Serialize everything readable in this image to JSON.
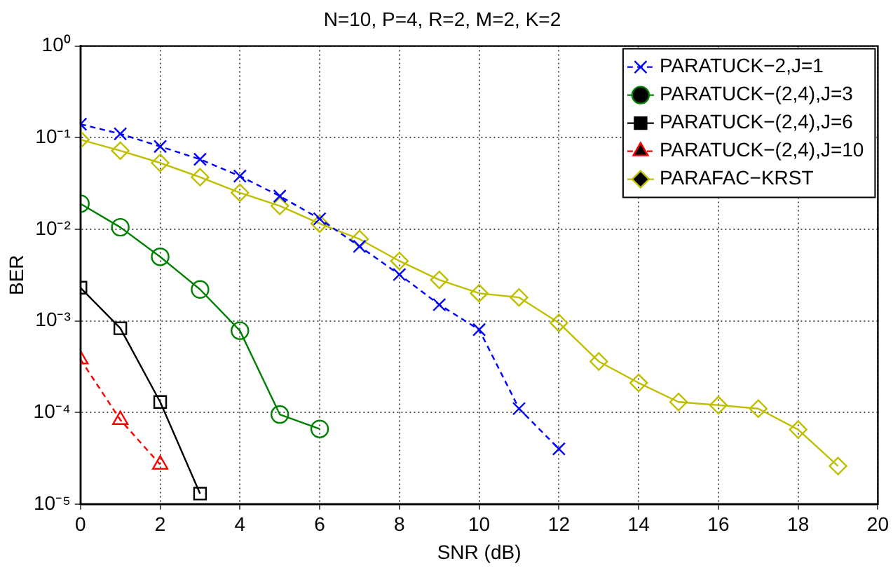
{
  "chart_data": {
    "type": "line",
    "title": "N=10, P=4, R=2, M=2, K=2",
    "xlabel": "SNR (dB)",
    "ylabel": "BER",
    "log": "y",
    "grid": true,
    "legend": "top right",
    "xlim": [
      0,
      20
    ],
    "xticks": [
      0,
      2,
      4,
      6,
      8,
      10,
      12,
      14,
      16,
      18,
      20
    ],
    "ylim": [
      1e-05,
      1
    ],
    "yticks": [
      {
        "value": 1e-05,
        "label": "10⁻⁵"
      },
      {
        "value": 0.0001,
        "label": "10⁻⁴"
      },
      {
        "value": 0.001,
        "label": "10⁻³"
      },
      {
        "value": 0.01,
        "label": "10⁻²"
      },
      {
        "value": 0.1,
        "label": "10⁻¹"
      },
      {
        "value": 1,
        "label": "10⁰"
      }
    ],
    "series": [
      {
        "name": "PARATUCK−2,J=1",
        "color": "#0000ff",
        "marker": "cross",
        "line_style": "dashed",
        "x": [
          0,
          1,
          2,
          3,
          4,
          5,
          6,
          7,
          8,
          9,
          10,
          11,
          12
        ],
        "values": [
          0.14,
          0.11,
          0.08,
          0.058,
          0.038,
          0.023,
          0.013,
          0.0065,
          0.0032,
          0.0015,
          0.0008,
          0.00011,
          4e-05
        ]
      },
      {
        "name": "PARATUCK−(2,4),J=3",
        "color": "#008000",
        "marker": "circle",
        "line_style": "solid",
        "x": [
          0,
          1,
          2,
          3,
          4,
          5,
          6
        ],
        "values": [
          0.019,
          0.0105,
          0.005,
          0.0022,
          0.00078,
          9.5e-05,
          6.6e-05
        ]
      },
      {
        "name": "PARATUCK−(2,4),J=6",
        "color": "#000000",
        "marker": "square",
        "line_style": "solid",
        "x": [
          0,
          1,
          2,
          3
        ],
        "values": [
          0.0023,
          0.00083,
          0.00013,
          1.3e-05
        ]
      },
      {
        "name": "PARATUCK−(2,4),J=10",
        "color": "#ff0000",
        "marker": "triangle",
        "line_style": "dashed",
        "x": [
          0,
          1,
          2
        ],
        "values": [
          0.00038,
          8.3e-05,
          2.7e-05
        ]
      },
      {
        "name": "PARAFAC−KRST",
        "color": "#bfbf00",
        "marker": "diamond",
        "line_style": "solid",
        "x": [
          0,
          1,
          2,
          3,
          4,
          5,
          6,
          7,
          8,
          9,
          10,
          11,
          12,
          13,
          14,
          15,
          16,
          17,
          18,
          19
        ],
        "values": [
          0.095,
          0.072,
          0.053,
          0.037,
          0.025,
          0.018,
          0.0115,
          0.0078,
          0.0045,
          0.0028,
          0.002,
          0.0018,
          0.00095,
          0.00036,
          0.00021,
          0.00013,
          0.00012,
          0.00011,
          6.5e-05,
          2.6e-05
        ]
      }
    ]
  }
}
